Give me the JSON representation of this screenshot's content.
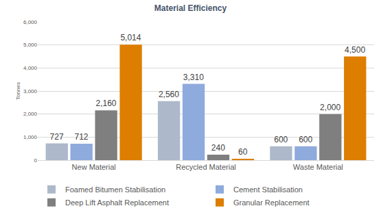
{
  "chart_data": {
    "type": "bar",
    "title": "Material Efficiency",
    "y_label": "Tonnes",
    "categories": [
      "New Material",
      "Recycled Material",
      "Waste Material"
    ],
    "series": [
      {
        "name": "Foamed Bitumen Stabilisation",
        "color": "#adb9ca",
        "values": [
          727,
          2560,
          600
        ],
        "value_labels": [
          "727",
          "2,560",
          "600"
        ]
      },
      {
        "name": "Cement Stabilisation",
        "color": "#8faadc",
        "values": [
          712,
          3310,
          600
        ],
        "value_labels": [
          "712",
          "3,310",
          "600"
        ]
      },
      {
        "name": "Deep Lift Asphalt Replacement",
        "color": "#7f7f7f",
        "values": [
          2160,
          240,
          2000
        ],
        "value_labels": [
          "2,160",
          "240",
          "2,000"
        ]
      },
      {
        "name": "Granular Replacement",
        "color": "#dd7e00",
        "values": [
          5014,
          60,
          4500
        ],
        "value_labels": [
          "5,014",
          "60",
          "4,500"
        ]
      }
    ],
    "ylim": [
      0,
      6000
    ],
    "yticks": [
      0,
      {
        "value": 1000,
        "label": "1,000"
      },
      {
        "value": 2000,
        "label": "2,000"
      },
      {
        "value": 3000,
        "label": "3,000"
      },
      {
        "value": 4000,
        "label": "4,000"
      },
      {
        "value": 5000,
        "label": "5,000"
      },
      {
        "value": 6000,
        "label": "6,000"
      }
    ],
    "grid": true,
    "legend": "bottom",
    "data_labels": true
  }
}
